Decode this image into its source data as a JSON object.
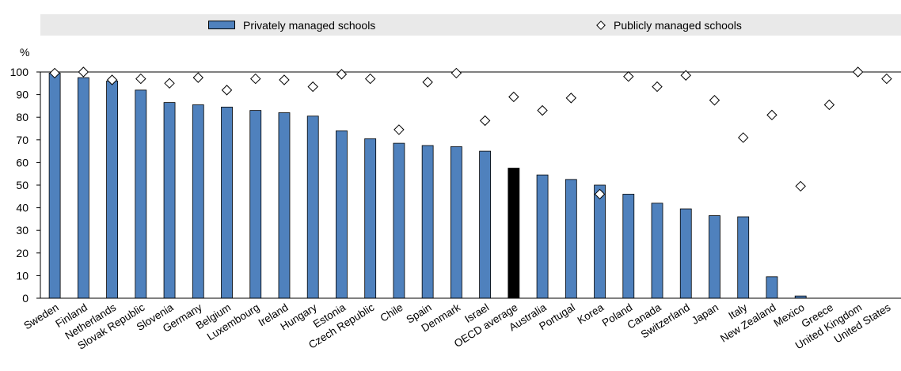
{
  "chart_data": {
    "type": "bar",
    "y_unit": "%",
    "ylim": [
      0,
      100
    ],
    "yticks": [
      0,
      10,
      20,
      30,
      40,
      50,
      60,
      70,
      80,
      90,
      100
    ],
    "categories": [
      "Sweden",
      "Finland",
      "Netherlands",
      "Slovak Republic",
      "Slovenia",
      "Germany",
      "Belgium",
      "Luxembourg",
      "Ireland",
      "Hungary",
      "Estonia",
      "Czech Republic",
      "Chile",
      "Spain",
      "Denmark",
      "Israel",
      "OECD average",
      "Australia",
      "Portugal",
      "Korea",
      "Poland",
      "Canada",
      "Switzerland",
      "Japan",
      "Italy",
      "New Zealand",
      "Mexico",
      "Greece",
      "United Kingdom",
      "United States"
    ],
    "highlight_category": "OECD average",
    "series": [
      {
        "name": "Privately managed schools",
        "mark": "bar",
        "color": "#4f81bd",
        "highlight_color": "#000000",
        "values": [
          99.5,
          97.5,
          96,
          92,
          86.5,
          85.5,
          84.5,
          83,
          82,
          80.5,
          74,
          70.5,
          68.5,
          67.5,
          67,
          65,
          57.5,
          54.5,
          52.5,
          50,
          46,
          42,
          39.5,
          36.5,
          36,
          9.5,
          1,
          null,
          null,
          null
        ]
      },
      {
        "name": "Publicly managed schools",
        "mark": "diamond",
        "color": "#ffffff",
        "values": [
          99.5,
          100,
          96.5,
          97,
          95,
          97.5,
          92,
          97,
          96.5,
          93.5,
          99,
          97,
          74.5,
          95.5,
          99.5,
          78.5,
          89,
          83,
          88.5,
          46,
          98,
          93.5,
          98.5,
          87.5,
          71,
          81,
          49.5,
          85.5,
          100,
          97
        ]
      }
    ],
    "legend_position": "top",
    "grid": false
  }
}
